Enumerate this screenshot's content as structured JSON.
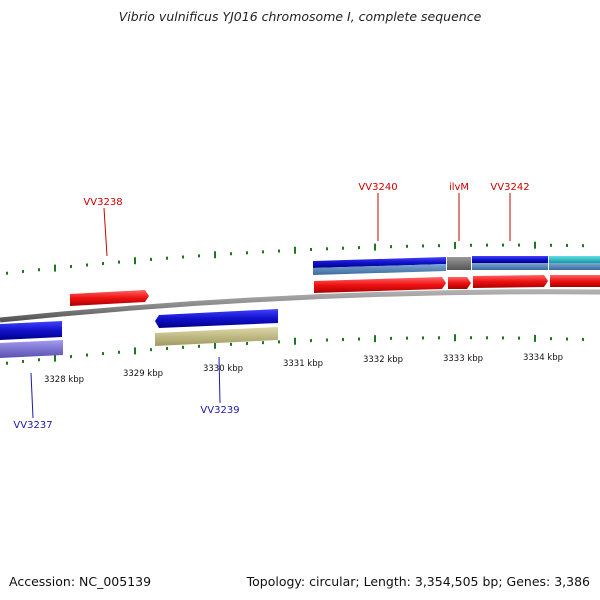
{
  "title": "Vibrio vulnificus YJ016 chromosome I, complete sequence",
  "footer": {
    "accession": "Accession: NC_005139",
    "summary": "Topology: circular; Length: 3,354,505 bp; Genes: 3,386"
  },
  "colors": {
    "forward_gene": "#ee1111",
    "reverse_gene": "#1111cc",
    "backbone": "#888888",
    "tick": "#1a7a1a",
    "forward_label": "#cc0000",
    "reverse_label": "#1a1aaa",
    "cds_blue": "#4a7fb5",
    "gray_gene": "#707070",
    "cyan_gene": "#22c3cc",
    "purple_gene": "#7a6fcc",
    "khaki_gene": "#c8c28a"
  },
  "scale": {
    "ticks": [
      {
        "label": "3328 kbp"
      },
      {
        "label": "3329 kbp"
      },
      {
        "label": "3330 kbp"
      },
      {
        "label": "3331 kbp"
      },
      {
        "label": "3332 kbp"
      },
      {
        "label": "3333 kbp"
      },
      {
        "label": "3334 kbp"
      }
    ]
  },
  "gene_labels": {
    "forward": [
      {
        "name": "VV3238"
      },
      {
        "name": "VV3240"
      },
      {
        "name": "ilvM"
      },
      {
        "name": "VV3242"
      }
    ],
    "reverse": [
      {
        "name": "VV3237"
      },
      {
        "name": "VV3239"
      }
    ]
  }
}
